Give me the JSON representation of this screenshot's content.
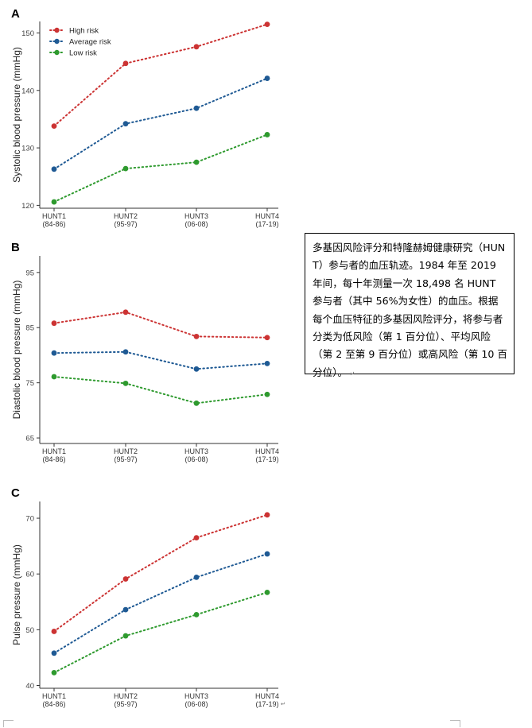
{
  "caption": {
    "text": "多基因风险评分和特隆赫姆健康研究（HUNT）参与者的血压轨迹。1984 年至 2019 年间，每十年测量一次 18,498 名 HUNT 参与者（其中 56%为女性）的血压。根据每个血压特征的多基因风险评分，将参与者分类为低风险（第 1 百分位）、平均风险（第 2 至第 9 百分位）或高风险（第 10 百分位）。"
  },
  "colors": {
    "high": "#cc3333",
    "average": "#1f5a94",
    "low": "#2e9a2e"
  },
  "chart_data": [
    {
      "panel": "A",
      "type": "line",
      "ylabel": "Systolic blood pressure (mmHg)",
      "categories": [
        "HUNT1\n(84-86)",
        "HUNT2\n(95-97)",
        "HUNT3\n(06-08)",
        "HUNT4\n(17-19)"
      ],
      "ylim": [
        119.5,
        152
      ],
      "yticks": [
        120,
        130,
        140,
        150
      ],
      "legend": "top-left",
      "series": [
        {
          "name": "High risk",
          "color_key": "high",
          "values": [
            133.8,
            144.7,
            147.6,
            151.5
          ]
        },
        {
          "name": "Average risk",
          "color_key": "average",
          "values": [
            126.3,
            134.2,
            136.9,
            142.1
          ]
        },
        {
          "name": "Low risk",
          "color_key": "low",
          "values": [
            120.6,
            126.4,
            127.5,
            132.3
          ]
        }
      ]
    },
    {
      "panel": "B",
      "type": "line",
      "ylabel": "Diastolic blood pressure (mmHg)",
      "categories": [
        "HUNT1\n(84-86)",
        "HUNT2\n(95-97)",
        "HUNT3\n(06-08)",
        "HUNT4\n(17-19)"
      ],
      "ylim": [
        64,
        98
      ],
      "yticks": [
        65,
        75,
        85,
        95
      ],
      "series": [
        {
          "name": "High risk",
          "color_key": "high",
          "values": [
            85.8,
            87.8,
            83.4,
            83.2
          ]
        },
        {
          "name": "Average risk",
          "color_key": "average",
          "values": [
            80.4,
            80.6,
            77.5,
            78.5
          ]
        },
        {
          "name": "Low risk",
          "color_key": "low",
          "values": [
            76.1,
            74.9,
            71.3,
            72.9
          ]
        }
      ]
    },
    {
      "panel": "C",
      "type": "line",
      "ylabel": "Pulse pressure (mmHg)",
      "categories": [
        "HUNT1\n(84-86)",
        "HUNT2\n(95-97)",
        "HUNT3\n(06-08)",
        "HUNT4\n(17-19)"
      ],
      "ylim": [
        39.5,
        73
      ],
      "yticks": [
        40,
        50,
        60,
        70
      ],
      "series": [
        {
          "name": "High risk",
          "color_key": "high",
          "values": [
            49.7,
            59.1,
            66.5,
            70.6
          ]
        },
        {
          "name": "Average risk",
          "color_key": "average",
          "values": [
            45.8,
            53.6,
            59.4,
            63.6
          ]
        },
        {
          "name": "Low risk",
          "color_key": "low",
          "values": [
            42.3,
            48.9,
            52.7,
            56.7
          ]
        }
      ]
    }
  ]
}
